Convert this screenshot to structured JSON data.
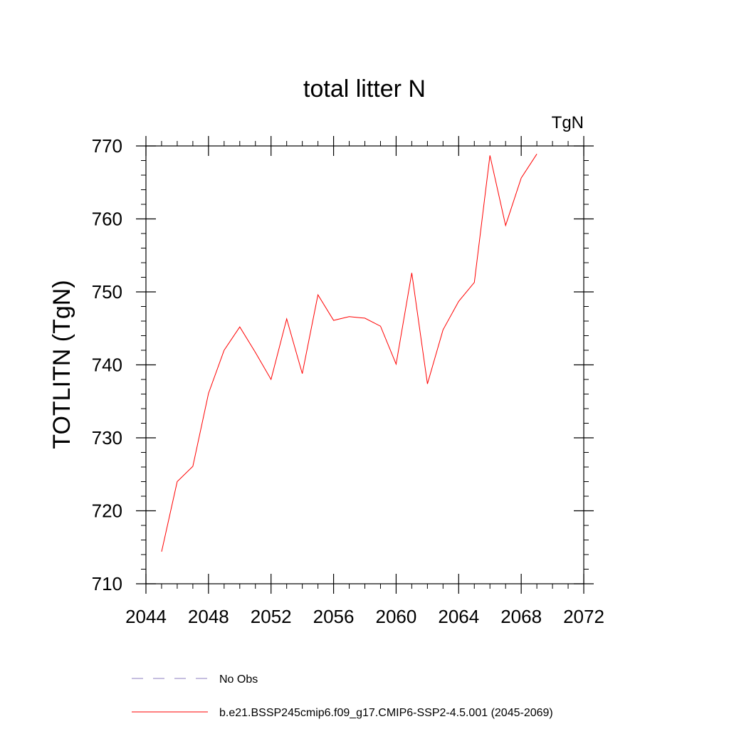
{
  "chart_data": {
    "type": "line",
    "title": "total litter N",
    "units_label": "TgN",
    "ylabel": "TOTLITN  (TgN)",
    "xlabel": "",
    "xlim": [
      2044,
      2072
    ],
    "ylim": [
      710,
      770
    ],
    "xticks": [
      2044,
      2048,
      2052,
      2056,
      2060,
      2064,
      2068,
      2072
    ],
    "yticks": [
      710,
      720,
      730,
      740,
      750,
      760,
      770
    ],
    "x_minor_step": 1,
    "y_minor_step": 2,
    "grid": false,
    "legend_position": "bottom",
    "series": [
      {
        "name": "b.e21.BSSP245cmip6.f09_g17.CMIP6-SSP2-4.5.001 (2045-2069)",
        "color": "#ff0000",
        "style": "solid",
        "x": [
          2045,
          2046,
          2047,
          2048,
          2049,
          2050,
          2051,
          2052,
          2053,
          2054,
          2055,
          2056,
          2057,
          2058,
          2059,
          2060,
          2061,
          2062,
          2063,
          2064,
          2065,
          2066,
          2067,
          2068,
          2069
        ],
        "values": [
          714.4,
          724.0,
          726.1,
          736.1,
          742.0,
          745.2,
          741.7,
          738.0,
          746.3,
          738.8,
          749.6,
          746.1,
          746.6,
          746.4,
          745.3,
          740.1,
          752.6,
          737.4,
          744.8,
          748.7,
          751.3,
          768.7,
          759.1,
          765.6,
          768.9
        ]
      }
    ],
    "legend": [
      {
        "label": "No Obs",
        "color": "#8c7fc0",
        "style": "dashed"
      },
      {
        "label": "b.e21.BSSP245cmip6.f09_g17.CMIP6-SSP2-4.5.001 (2045-2069)",
        "color": "#ff0000",
        "style": "solid"
      }
    ]
  }
}
